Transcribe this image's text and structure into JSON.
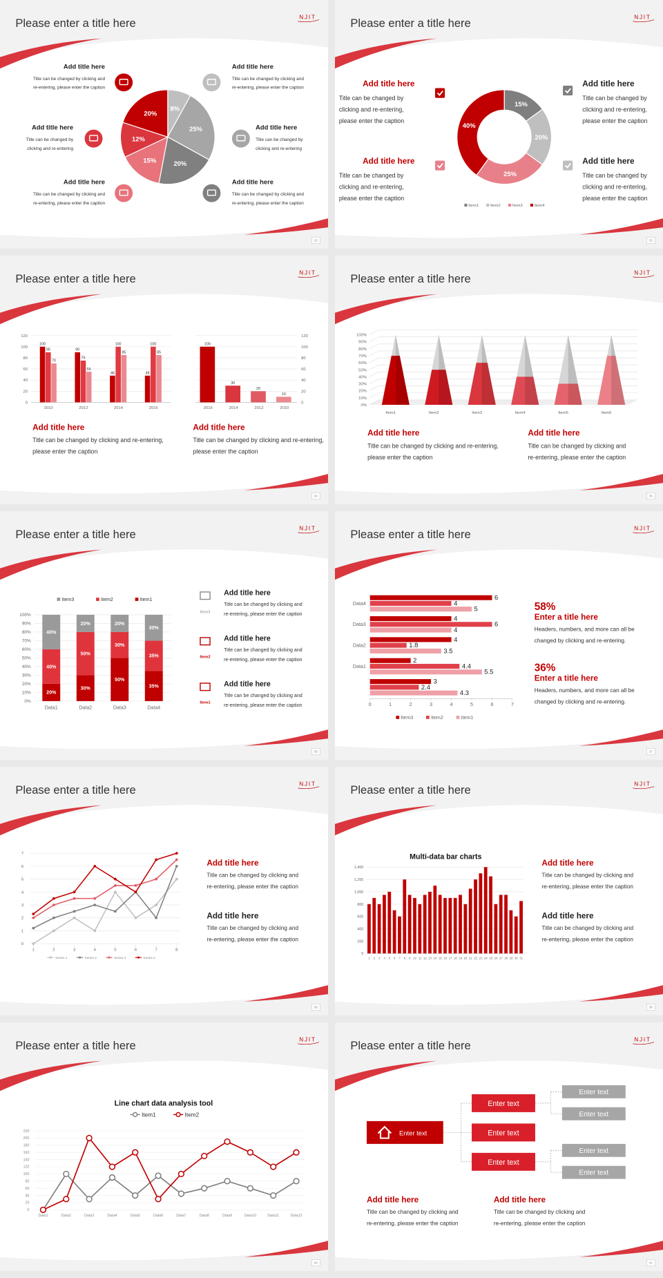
{
  "slides": [
    {
      "title": "Please enter a title here",
      "logo": "NJIT",
      "page": 32,
      "chart": {
        "type": "pie",
        "values": [
          8,
          25,
          20,
          15,
          12,
          20
        ],
        "value_labels": [
          "8%",
          "25%",
          "20%",
          "15%",
          "12%",
          "20%"
        ],
        "colors": [
          "#bfbfbf",
          "#a6a6a6",
          "#808080",
          "#e8737b",
          "#d9363e",
          "#c00000"
        ]
      },
      "callouts": [
        {
          "title": "Add title here",
          "caption": [
            "Title can be changed by clicking and",
            "re-entering, please enter the caption"
          ]
        },
        {
          "title": "Add title here",
          "caption": [
            "Title can be changed by",
            "clicking and re-entering"
          ]
        },
        {
          "title": "Add title here",
          "caption": [
            "Title can be changed by clicking and",
            "re-entering, please enter the caption"
          ]
        },
        {
          "title": "Add title here",
          "caption": [
            "Title can be changed by clicking and",
            "re-entering, please enter the caption"
          ]
        },
        {
          "title": "Add title here",
          "caption": [
            "Title can be changed by",
            "clicking and re-entering"
          ]
        },
        {
          "title": "Add title here",
          "caption": [
            "Title can be changed by clicking and",
            "re-entering, please enter the caption"
          ]
        }
      ]
    },
    {
      "title": "Please enter a title here",
      "logo": "NJIT",
      "page": 33,
      "chart": {
        "type": "donut",
        "categories": [
          "Item1",
          "Item2",
          "Item3",
          "Item4"
        ],
        "values": [
          15,
          20,
          25,
          40
        ],
        "value_labels": [
          "15%",
          "20%",
          "25%",
          "40%"
        ],
        "colors": [
          "#7f7f7f",
          "#bfbfbf",
          "#e8808a",
          "#c00000"
        ]
      },
      "callouts": [
        {
          "title": "Add title here",
          "caption": [
            "Title can be changed by",
            "clicking and re-entering,",
            "please enter the caption"
          ]
        },
        {
          "title": "Add title here",
          "caption": [
            "Title can be changed by",
            "clicking and re-entering,",
            "please enter the caption"
          ]
        },
        {
          "title": "Add title here",
          "caption": [
            "Title can be changed by",
            "clicking and re-entering,",
            "please enter the caption"
          ]
        },
        {
          "title": "Add title here",
          "caption": [
            "Title can be changed by",
            "clicking and re-entering,",
            "please enter the caption"
          ]
        }
      ]
    },
    {
      "title": "Please enter a title here",
      "logo": "NJIT",
      "page": 34,
      "charts": [
        {
          "type": "bar",
          "categories": [
            "2010",
            "2012",
            "2014",
            "2016"
          ],
          "series": [
            {
              "color": "#c00000",
              "values": [
                100,
                90,
                48,
                48
              ]
            },
            {
              "color": "#e03a42",
              "values": [
                90,
                75,
                100,
                100
              ]
            },
            {
              "color": "#ea8a90",
              "values": [
                70,
                55,
                85,
                85
              ]
            }
          ],
          "ylim": [
            0,
            120
          ],
          "yticks": [
            0,
            20,
            40,
            60,
            80,
            100,
            120
          ]
        },
        {
          "type": "bar",
          "categories": [
            "2016",
            "2014",
            "2012",
            "2010"
          ],
          "values": [
            100,
            30,
            20,
            10
          ],
          "colors": [
            "#c00000",
            "#d9363e",
            "#e05a64",
            "#ea8a90"
          ],
          "ylim": [
            0,
            120
          ],
          "yticks": [
            0,
            20,
            40,
            60,
            80,
            100,
            120
          ],
          "y_axis_side": "right"
        }
      ],
      "blocks": [
        {
          "title": "Add title here",
          "caption": [
            "Title can be changed by clicking and re-entering,",
            "please enter the caption"
          ]
        },
        {
          "title": "Add title here",
          "caption": [
            "Title can be changed by clicking and re-entering,",
            "please enter the caption"
          ]
        }
      ]
    },
    {
      "title": "Please enter a title here",
      "logo": "NJIT",
      "page": 35,
      "chart": {
        "type": "cone",
        "categories": [
          "Item1",
          "Item2",
          "Item3",
          "Item4",
          "Item5",
          "Item6"
        ],
        "values": [
          70,
          50,
          60,
          40,
          30,
          70
        ],
        "colors": [
          "#c00000",
          "#d01a22",
          "#d9363e",
          "#e04a55",
          "#e6626c",
          "#ec8088"
        ],
        "ylim": [
          0,
          100
        ],
        "yticks": [
          {
            "value": 0,
            "label": "0%"
          },
          {
            "value": 10,
            "label": "10%"
          },
          {
            "value": 20,
            "label": "20%"
          },
          {
            "value": 30,
            "label": "30%"
          },
          {
            "value": 40,
            "label": "40%"
          },
          {
            "value": 50,
            "label": "50%"
          },
          {
            "value": 60,
            "label": "60%"
          },
          {
            "value": 70,
            "label": "70%"
          },
          {
            "value": 80,
            "label": "80%"
          },
          {
            "value": 90,
            "label": "90%"
          },
          {
            "value": 100,
            "label": "100%"
          }
        ]
      },
      "blocks": [
        {
          "title": "Add title here",
          "caption": [
            "Title can be changed by clicking and re-entering,",
            "please enter the caption"
          ]
        },
        {
          "title": "Add title here",
          "caption": [
            "Title can be changed by clicking and",
            "re-entering, please enter the caption"
          ]
        }
      ]
    },
    {
      "title": "Please enter a title here",
      "logo": "NJIT",
      "page": 36,
      "chart": {
        "type": "stacked-bar",
        "categories": [
          "Data1",
          "Data2",
          "Data3",
          "Data4"
        ],
        "series": [
          {
            "name": "Item1",
            "color": "#c00000",
            "values": [
              20,
              30,
              50,
              35
            ],
            "value_labels": [
              "20%",
              "30%",
              "50%",
              "35%"
            ]
          },
          {
            "name": "Item2",
            "color": "#e0343c",
            "values": [
              40,
              50,
              30,
              35
            ],
            "value_labels": [
              "40%",
              "50%",
              "30%",
              "35%"
            ]
          },
          {
            "name": "Item3",
            "color": "#9a9a9a",
            "values": [
              40,
              20,
              20,
              30
            ],
            "value_labels": [
              "40%",
              "20%",
              "20%",
              "30%"
            ]
          }
        ],
        "ylim": [
          0,
          100
        ],
        "yticks": [
          {
            "value": 0,
            "label": "0%"
          },
          {
            "value": 10,
            "label": "10%"
          },
          {
            "value": 20,
            "label": "20%"
          },
          {
            "value": 30,
            "label": "30%"
          },
          {
            "value": 40,
            "label": "40%"
          },
          {
            "value": 50,
            "label": "50%"
          },
          {
            "value": 60,
            "label": "60%"
          },
          {
            "value": 70,
            "label": "70%"
          },
          {
            "value": 80,
            "label": "80%"
          },
          {
            "value": 90,
            "label": "90%"
          },
          {
            "value": 100,
            "label": "100%"
          }
        ]
      },
      "callouts": [
        {
          "label": "Item3",
          "title": "Add title here",
          "caption": [
            "Title can be changed by clicking and",
            "re-entering, please enter the caption"
          ]
        },
        {
          "label": "Item2",
          "title": "Add title here",
          "caption": [
            "Title can be changed by clicking and",
            "re-entering, please enter the caption"
          ]
        },
        {
          "label": "Item1",
          "title": "Add title here",
          "caption": [
            "Title can be changed by clicking and",
            "re-entering, please enter the caption"
          ]
        }
      ]
    },
    {
      "title": "Please enter a title here",
      "logo": "NJIT",
      "page": 37,
      "chart": {
        "type": "hbar",
        "categories": [
          "Data4",
          "Data3",
          "Data2",
          "Data1",
          null
        ],
        "series": [
          {
            "name": "Item3",
            "color": "#c00000",
            "values": [
              6,
              4,
              4,
              2,
              3
            ]
          },
          {
            "name": "Item2",
            "color": "#e0404a",
            "values": [
              4,
              6,
              1.8,
              4.4,
              2.4
            ]
          },
          {
            "name": "Item1",
            "color": "#eea0a6",
            "values": [
              5,
              4,
              3.5,
              5.5,
              4.3
            ]
          }
        ],
        "xlim": [
          0,
          7
        ],
        "xticks": [
          0,
          1,
          2,
          3,
          4,
          5,
          6,
          7
        ]
      },
      "stats": [
        {
          "figure": "58%",
          "title": "Enter a title here",
          "caption": [
            "Headers, numbers, and more can all be",
            "changed by clicking and re-entering."
          ]
        },
        {
          "figure": "36%",
          "title": "Enter a title here",
          "caption": [
            "Headers, numbers, and more can all be",
            "changed by clicking and re-entering."
          ]
        }
      ]
    },
    {
      "title": "Please enter a title here",
      "logo": "NJIT",
      "page": 38,
      "chart": {
        "type": "line",
        "x": [
          1,
          2,
          3,
          4,
          5,
          6,
          7,
          8
        ],
        "series": [
          {
            "name": "Series 1",
            "color": "#bfbfbf",
            "values": [
              0,
              1,
              2,
              1,
              4,
              2,
              3,
              5
            ]
          },
          {
            "name": "Series 2",
            "color": "#7f7f7f",
            "values": [
              1.2,
              2,
              2.5,
              3,
              2.5,
              4,
              2,
              6
            ]
          },
          {
            "name": "Series 3",
            "color": "#e05a64",
            "values": [
              2,
              3,
              3.5,
              3.5,
              4.5,
              4.5,
              5,
              6.5
            ]
          },
          {
            "name": "Series 4",
            "color": "#c00000",
            "values": [
              2.3,
              3.5,
              4,
              6,
              5,
              4,
              6.5,
              7
            ]
          }
        ],
        "xlim": [
          1,
          8
        ],
        "xticks": [
          1,
          2,
          3,
          4,
          5,
          6,
          7,
          8
        ],
        "ylim": [
          0,
          7
        ],
        "yticks": [
          0,
          1,
          2,
          3,
          4,
          5,
          6,
          7
        ]
      },
      "blocks": [
        {
          "title": "Add title here",
          "caption": [
            "Title can be changed by clicking and",
            "re-entering, please enter the caption"
          ]
        },
        {
          "title": "Add title here",
          "caption": [
            "Title can be changed by clicking and",
            "re-entering, please enter the caption"
          ]
        }
      ]
    },
    {
      "title": "Please enter a title here",
      "logo": "NJIT",
      "page": 39,
      "chart": {
        "type": "bar",
        "title": "Multi-data bar charts",
        "categories": [
          "1",
          "2",
          "3",
          "4",
          "5",
          "6",
          "7",
          "8",
          "9",
          "10",
          "11",
          "12",
          "13",
          "14",
          "15",
          "16",
          "17",
          "18",
          "19",
          "20",
          "21",
          "22",
          "23",
          "24",
          "25",
          "26",
          "27",
          "28",
          "29",
          "30",
          "31"
        ],
        "values": [
          800,
          900,
          800,
          950,
          1000,
          700,
          600,
          1200,
          950,
          900,
          800,
          950,
          1000,
          1100,
          950,
          900,
          900,
          900,
          950,
          800,
          1050,
          1200,
          1300,
          1400,
          1250,
          800,
          950,
          950,
          700,
          600,
          850
        ],
        "color": "#c00000",
        "ylim": [
          0,
          1400
        ],
        "yticks": [
          0,
          200,
          400,
          600,
          800,
          {
            "value": 1000,
            "label": "1,000"
          },
          {
            "value": 1200,
            "label": "1,200"
          },
          {
            "value": 1400,
            "label": "1,400"
          }
        ]
      },
      "blocks": [
        {
          "title": "Add title here",
          "caption": [
            "Title can be changed by clicking and",
            "re-entering, please enter the caption"
          ]
        },
        {
          "title": "Add title here",
          "caption": [
            "Title can be changed by clicking and",
            "re-entering, please enter the caption"
          ]
        }
      ]
    },
    {
      "title": "Please enter a title here",
      "logo": "NJIT",
      "page": 40,
      "chart": {
        "type": "line",
        "title": "Line chart data analysis tool",
        "categories": [
          "Data1",
          "Data2",
          "Data3",
          "Data4",
          "Data5",
          "Data6",
          "Data7",
          "Data8",
          "Data9",
          "Data10",
          "Data11",
          "Data12"
        ],
        "series": [
          {
            "name": "Item1",
            "color": "#7f7f7f",
            "values": [
              0,
              100,
              30,
              90,
              40,
              95,
              45,
              60,
              80,
              60,
              40,
              80
            ]
          },
          {
            "name": "Item2",
            "color": "#c00000",
            "values": [
              0,
              30,
              200,
              120,
              160,
              30,
              100,
              150,
              190,
              160,
              120,
              160
            ]
          }
        ],
        "ylim": [
          0,
          220
        ],
        "yticks": [
          0,
          20,
          40,
          60,
          80,
          100,
          120,
          140,
          160,
          180,
          200,
          220
        ]
      }
    },
    {
      "title": "Please enter a title here",
      "logo": "NJIT",
      "page": 41,
      "diagram": {
        "root": "Enter text",
        "branches": [
          "Enter text",
          "Enter text",
          "Enter text"
        ],
        "leaves": [
          "Enter text",
          "Enter text",
          "Enter text",
          "Enter text"
        ]
      },
      "blocks": [
        {
          "title": "Add title here",
          "caption": [
            "Title can be changed by clicking and",
            "re-entering, please enter the caption"
          ]
        },
        {
          "title": "Add title here",
          "caption": [
            "Title can be changed by clicking and",
            "re-entering, please enter the caption"
          ]
        }
      ]
    }
  ]
}
